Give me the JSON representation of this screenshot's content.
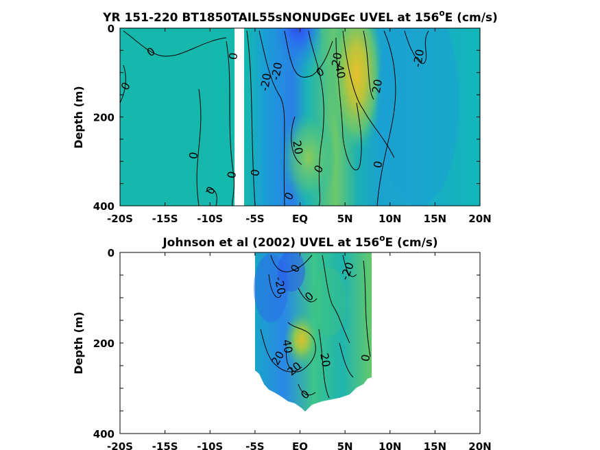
{
  "chart_data": [
    {
      "type": "heatmap",
      "title": "YR 151-220 BT1850TAIL55sNONUDGEc UVEL at 156",
      "title_sup": "o",
      "title_suffix": "E (cm/s)",
      "ylabel": "Depth (m)",
      "x_ticks": [
        "-20S",
        "-15S",
        "-10S",
        "-5S",
        "EQ",
        "5N",
        "10N",
        "15N",
        "20N"
      ],
      "x_tick_values": [
        -20,
        -15,
        -10,
        -5,
        0,
        5,
        10,
        15,
        20
      ],
      "y_ticks": [
        "0",
        "200",
        "400"
      ],
      "y_tick_values": [
        0,
        200,
        400
      ],
      "xlim": [
        -20,
        20
      ],
      "ylim": [
        400,
        0
      ],
      "colormap": "parula",
      "data_gap_x": [
        -7.5,
        -6.5
      ],
      "contour_labels": [
        "0",
        "0",
        "0",
        "-20",
        "-20",
        "20",
        "40",
        "0",
        "-20",
        "20",
        "20",
        "0",
        "0",
        "0",
        "0",
        "0",
        "0",
        "0"
      ]
    },
    {
      "type": "heatmap",
      "title": "Johnson et al (2002) UVEL at 156",
      "title_sup": "o",
      "title_suffix": "E (cm/s)",
      "ylabel": "Depth (m)",
      "x_ticks": [
        "-20S",
        "-15S",
        "-10S",
        "-5S",
        "EQ",
        "5N",
        "10N",
        "15N",
        "20N"
      ],
      "x_tick_values": [
        -20,
        -15,
        -10,
        -5,
        0,
        5,
        10,
        15,
        20
      ],
      "y_ticks": [
        "0",
        "200",
        "400"
      ],
      "y_tick_values": [
        0,
        200,
        400
      ],
      "xlim": [
        -20,
        20
      ],
      "ylim": [
        400,
        0
      ],
      "colormap": "parula",
      "data_extent_x": [
        -5,
        8
      ],
      "contour_labels": [
        "-20",
        "0",
        "0",
        "-20",
        "20",
        "40",
        "20",
        "20",
        "0",
        "0"
      ]
    }
  ]
}
